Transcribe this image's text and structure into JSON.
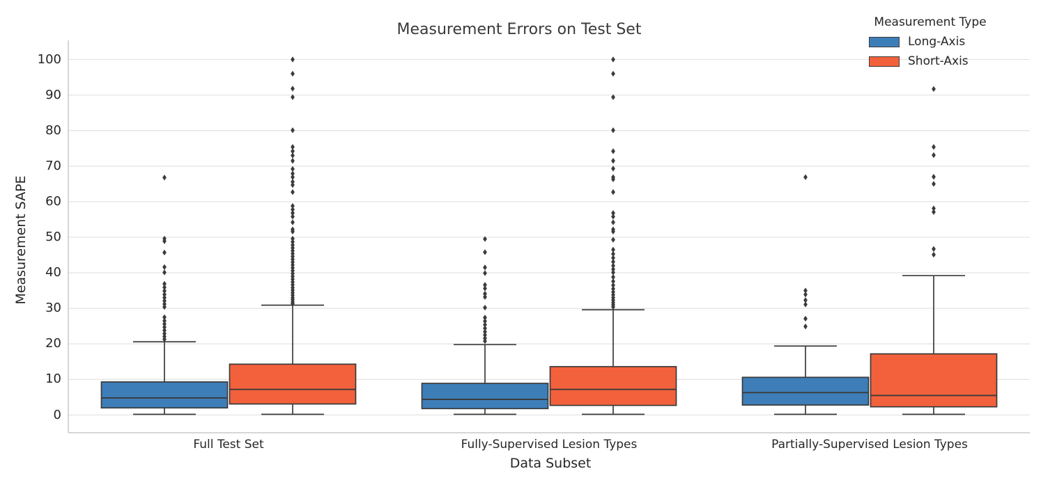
{
  "figure": {
    "title": "Measurement Errors on Test Set",
    "xlabel": "Data Subset",
    "ylabel": "Measurement SAPE"
  },
  "legend": {
    "title": "Measurement Type"
  },
  "chart_data": {
    "type": "boxplot",
    "title": "Measurement Errors on Test Set",
    "xlabel": "Data Subset",
    "ylabel": "Measurement SAPE",
    "ylim": [
      -5,
      105.5
    ],
    "yticks": [
      0,
      10,
      20,
      30,
      40,
      50,
      60,
      70,
      80,
      90,
      100
    ],
    "grid": "horizontal",
    "legend_position": "upper right",
    "legend_title": "Measurement Type",
    "outlier_marker": "diamond",
    "categories": [
      "Full Test Set",
      "Fully-Supervised Lesion Types",
      "Partially-Supervised Lesion Types"
    ],
    "series": [
      {
        "name": "Long-Axis",
        "color": "#3e7eb8",
        "boxes": [
          {
            "category": "Full Test Set",
            "whisker_low": 0.2,
            "q1": 2.0,
            "median": 4.8,
            "q3": 9.3,
            "whisker_high": 20.6,
            "outliers": [
              66.8,
              49.6,
              48.9,
              45.7,
              41.6,
              40.1,
              36.9,
              35.9,
              34.9,
              33.9,
              33.0,
              32.1,
              31.2,
              30.4,
              27.5,
              26.5,
              25.6,
              24.7,
              23.8,
              22.9,
              22.1,
              21.3
            ]
          },
          {
            "category": "Fully-Supervised Lesion Types",
            "whisker_low": 0.2,
            "q1": 1.8,
            "median": 4.4,
            "q3": 8.9,
            "whisker_high": 19.8,
            "outliers": [
              49.5,
              45.8,
              41.5,
              39.9,
              36.6,
              35.6,
              34.1,
              33.2,
              30.2,
              27.4,
              26.4,
              25.4,
              24.4,
              23.4,
              22.5,
              21.6,
              20.8
            ]
          },
          {
            "category": "Partially-Supervised Lesion Types",
            "whisker_low": 0.2,
            "q1": 2.8,
            "median": 6.3,
            "q3": 10.6,
            "whisker_high": 19.4,
            "outliers": [
              66.9,
              35.0,
              33.9,
              32.3,
              31.1,
              27.1,
              24.9
            ]
          }
        ]
      },
      {
        "name": "Short-Axis",
        "color": "#f2613c",
        "boxes": [
          {
            "category": "Full Test Set",
            "whisker_low": 0.2,
            "q1": 3.1,
            "median": 7.2,
            "q3": 14.3,
            "whisker_high": 30.9,
            "outliers": [
              100.0,
              96.0,
              91.8,
              89.4,
              80.1,
              75.4,
              74.2,
              73.0,
              71.5,
              69.2,
              67.9,
              66.9,
              65.6,
              64.7,
              62.7,
              58.8,
              57.8,
              56.8,
              55.8,
              54.2,
              52.2,
              51.6,
              49.6,
              48.7,
              47.8,
              47.0,
              46.2,
              45.4,
              44.6,
              43.8,
              43.0,
              42.2,
              41.4,
              40.6,
              39.8,
              39.0,
              38.2,
              37.4,
              36.6,
              35.8,
              35.1,
              34.4,
              33.7,
              33.0,
              32.4,
              31.8,
              31.3
            ]
          },
          {
            "category": "Fully-Supervised Lesion Types",
            "whisker_low": 0.2,
            "q1": 2.7,
            "median": 7.2,
            "q3": 13.6,
            "whisker_high": 29.6,
            "outliers": [
              100.0,
              96.0,
              89.4,
              80.1,
              74.2,
              71.5,
              69.3,
              66.9,
              66.3,
              62.7,
              56.8,
              55.8,
              54.2,
              52.2,
              51.6,
              49.3,
              46.5,
              45.3,
              44.2,
              43.1,
              42.0,
              41.0,
              40.1,
              38.8,
              37.6,
              36.5,
              35.5,
              34.6,
              33.8,
              33.0,
              32.3,
              31.6,
              31.0,
              30.4
            ]
          },
          {
            "category": "Partially-Supervised Lesion Types",
            "whisker_low": 0.2,
            "q1": 2.3,
            "median": 5.5,
            "q3": 17.2,
            "whisker_high": 39.2,
            "outliers": [
              91.7,
              75.4,
              73.1,
              67.0,
              65.0,
              58.1,
              57.1,
              46.7,
              45.1
            ]
          }
        ]
      }
    ],
    "style": {
      "box_edge_color": "#3a3a3a",
      "grid_color": "#e4e4e4",
      "spine_color": "#c9c9c9",
      "outlier_color": "#3b3b3b"
    }
  }
}
